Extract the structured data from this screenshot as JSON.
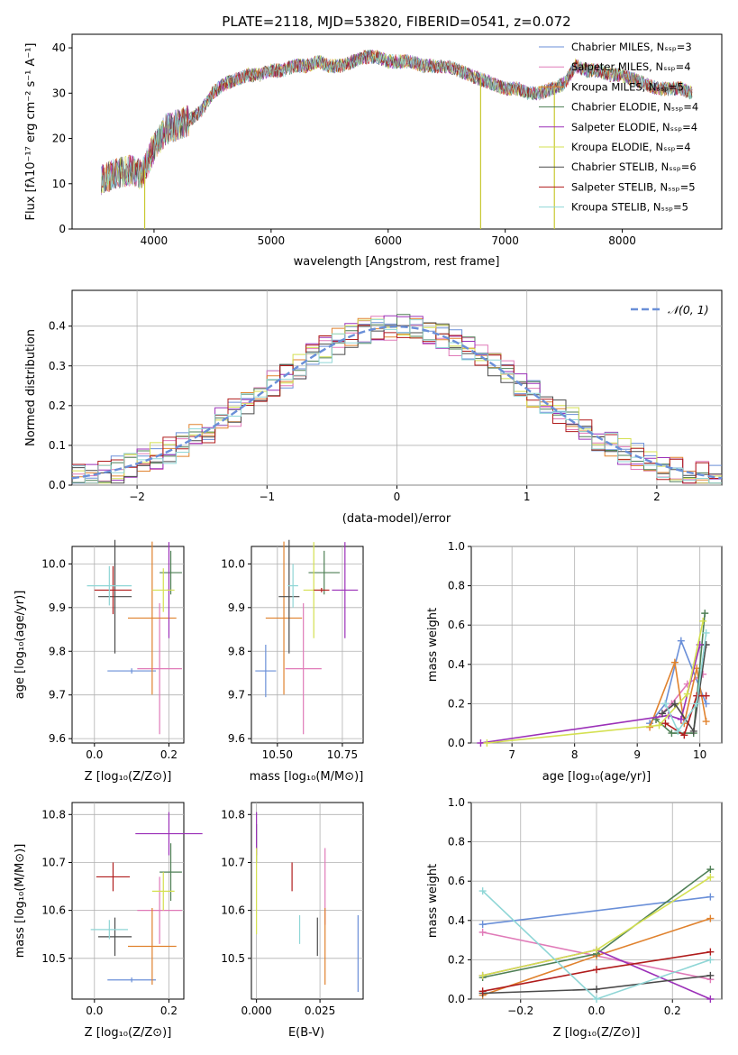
{
  "figure": {
    "title": "PLATE=2118, MJD=53820, FIBERID=0541, z=0.072"
  },
  "colors": {
    "chabrier_miles": "#6a8fd8",
    "salpeter_miles": "#e07ab8",
    "kroupa_miles": "#e0822e",
    "chabrier_elodie": "#4e7f55",
    "salpeter_elodie": "#9b30b8",
    "kroupa_elodie": "#d4e050",
    "chabrier_stelib": "#4a4a4a",
    "salpeter_stelib": "#b01c1c",
    "kroupa_stelib": "#8fd6d6",
    "normal_curve": "#6a8fd8",
    "grid": "#b0b0b0"
  },
  "chart_data": [
    {
      "id": "spectrum",
      "type": "line",
      "title": "PLATE=2118, MJD=53820, FIBERID=0541, z=0.072",
      "xlabel": "wavelength [Angstrom, rest frame]",
      "ylabel": "Flux [fλ10⁻¹⁷ erg cm⁻² s⁻¹ A⁻¹]",
      "xlim": [
        3300,
        8850
      ],
      "ylim": [
        0,
        43
      ],
      "xticks": [
        "4000",
        "5000",
        "6000",
        "7000",
        "8000"
      ],
      "yticks": [
        "0",
        "10",
        "20",
        "30",
        "40"
      ],
      "grid": false,
      "legend_position": "top-right",
      "legend": [
        "Chabrier MILES, Nₛₛₚ=3",
        "Salpeter MILES, Nₛₛₚ=4",
        "Kroupa MILES, Nₛₛₚ=5",
        "Chabrier ELODIE, Nₛₛₚ=4",
        "Salpeter ELODIE, Nₛₛₚ=4",
        "Kroupa ELODIE, Nₛₛₚ=4",
        "Chabrier STELIB, Nₛₛₚ=6",
        "Salpeter STELIB, Nₛₛₚ=5",
        "Kroupa STELIB, Nₛₛₚ=5"
      ],
      "continuum": {
        "wavelength": [
          3550,
          3650,
          3800,
          3900,
          4000,
          4100,
          4200,
          4300,
          4400,
          4500,
          4600,
          4700,
          4800,
          4900,
          5000,
          5100,
          5200,
          5300,
          5400,
          5500,
          5600,
          5700,
          5800,
          5900,
          6000,
          6100,
          6200,
          6300,
          6400,
          6500,
          6600,
          6700,
          6800,
          6900,
          7000,
          7100,
          7200,
          7300,
          7400,
          7500,
          7600,
          7700,
          7800,
          7900,
          8000,
          8100,
          8200,
          8300,
          8400,
          8500,
          8600
        ],
        "flux": [
          11,
          12,
          13,
          12,
          18,
          22,
          23,
          24,
          26,
          30,
          32,
          33,
          34,
          34,
          35,
          35,
          36,
          36,
          37,
          36,
          36,
          37,
          38,
          38,
          37,
          37,
          37,
          36,
          36,
          36,
          35,
          34,
          33,
          32,
          31,
          31,
          30,
          30,
          31,
          32,
          36,
          35,
          35,
          34,
          34,
          33,
          32,
          31,
          31,
          31,
          30
        ]
      },
      "spikes": [
        {
          "x": 3920,
          "y_from": 0,
          "y_to": 13
        },
        {
          "x": 6790,
          "y_from": 0,
          "y_to": 33
        },
        {
          "x": 7420,
          "y_from": 0,
          "y_to": 31
        }
      ]
    },
    {
      "id": "residual_histogram",
      "type": "line",
      "xlabel": "(data-model)/error",
      "ylabel": "Normed distribution",
      "xlim": [
        -2.5,
        2.5
      ],
      "ylim": [
        0,
        0.49
      ],
      "xticks": [
        "−2",
        "−1",
        "0",
        "1",
        "2"
      ],
      "yticks": [
        "0.0",
        "0.1",
        "0.2",
        "0.3",
        "0.4"
      ],
      "grid": true,
      "legend_position": "top-right",
      "legend": [
        "𝒩(0, 1)"
      ],
      "bin_width": 0.1,
      "n_bins": 50
    },
    {
      "id": "age_vs_Z",
      "type": "scatter",
      "xlabel": "Z [log₁₀(Z/Z⊙)]",
      "ylabel": "age  [log₁₀(age/yr)]",
      "xlim": [
        -0.06,
        0.24
      ],
      "ylim": [
        9.59,
        10.04
      ],
      "xticks": [
        "0.0",
        "0.2"
      ],
      "yticks": [
        "9.6",
        "9.7",
        "9.8",
        "9.9",
        "10.0"
      ],
      "grid": true,
      "points": [
        {
          "model": "chabrier_miles",
          "x": 0.1,
          "y": 9.755,
          "xerr": 0.065,
          "yerr": 0.006
        },
        {
          "model": "salpeter_miles",
          "x": 0.175,
          "y": 9.76,
          "xerr": 0.06,
          "yerr": 0.15
        },
        {
          "model": "kroupa_miles",
          "x": 0.155,
          "y": 9.876,
          "xerr": 0.065,
          "yerr": 0.175
        },
        {
          "model": "chabrier_elodie",
          "x": 0.205,
          "y": 9.98,
          "xerr": 0.03,
          "yerr": 0.05
        },
        {
          "model": "salpeter_elodie",
          "x": 0.2,
          "y": 9.94,
          "xerr": 0.005,
          "yerr": 0.11
        },
        {
          "model": "kroupa_elodie",
          "x": 0.185,
          "y": 9.94,
          "xerr": 0.03,
          "yerr": 0.05
        },
        {
          "model": "chabrier_stelib",
          "x": 0.055,
          "y": 9.925,
          "xerr": 0.045,
          "yerr": 0.13
        },
        {
          "model": "salpeter_stelib",
          "x": 0.05,
          "y": 9.94,
          "xerr": 0.05,
          "yerr": 0.055
        },
        {
          "model": "kroupa_stelib",
          "x": 0.04,
          "y": 9.95,
          "xerr": 0.06,
          "yerr": 0.045
        }
      ]
    },
    {
      "id": "age_vs_mass",
      "type": "scatter",
      "xlabel": "mass [log₁₀(M/M⊙)]",
      "ylabel": "",
      "xlim": [
        10.4,
        10.83
      ],
      "ylim": [
        9.59,
        10.04
      ],
      "xticks": [
        "10.50",
        "10.75"
      ],
      "yticks": [
        "9.6",
        "9.7",
        "9.8",
        "9.9",
        "10.0"
      ],
      "grid": true,
      "points": [
        {
          "model": "chabrier_miles",
          "x": 10.455,
          "y": 9.755,
          "xerr": 0.04,
          "yerr": 0.06
        },
        {
          "model": "salpeter_miles",
          "x": 10.6,
          "y": 9.76,
          "xerr": 0.07,
          "yerr": 0.15
        },
        {
          "model": "kroupa_miles",
          "x": 10.525,
          "y": 9.876,
          "xerr": 0.07,
          "yerr": 0.175
        },
        {
          "model": "chabrier_elodie",
          "x": 10.68,
          "y": 9.98,
          "xerr": 0.06,
          "yerr": 0.05
        },
        {
          "model": "salpeter_elodie",
          "x": 10.76,
          "y": 9.94,
          "xerr": 0.05,
          "yerr": 0.11
        },
        {
          "model": "kroupa_elodie",
          "x": 10.64,
          "y": 9.94,
          "xerr": 0.04,
          "yerr": 0.11
        },
        {
          "model": "chabrier_stelib",
          "x": 10.545,
          "y": 9.925,
          "xerr": 0.04,
          "yerr": 0.13
        },
        {
          "model": "salpeter_stelib",
          "x": 10.67,
          "y": 9.94,
          "xerr": 0.03,
          "yerr": 0.005
        },
        {
          "model": "kroupa_stelib",
          "x": 10.56,
          "y": 9.95,
          "xerr": 0.02,
          "yerr": 0.05
        }
      ]
    },
    {
      "id": "mass_weight_vs_age",
      "type": "line",
      "xlabel": "age  [log₁₀(age/yr)]",
      "ylabel": "mass weight",
      "xlim": [
        6.35,
        10.35
      ],
      "ylim": [
        0,
        1.0
      ],
      "xticks": [
        "7",
        "8",
        "9",
        "10"
      ],
      "yticks": [
        "0.0",
        "0.2",
        "0.4",
        "0.6",
        "0.8",
        "1.0"
      ],
      "grid": true,
      "series": [
        {
          "model": "chabrier_miles",
          "x": [
            9.2,
            9.45,
            9.7,
            10.1
          ],
          "y": [
            0.1,
            0.2,
            0.52,
            0.2
          ]
        },
        {
          "model": "salpeter_miles",
          "x": [
            9.3,
            9.55,
            9.8,
            10.05
          ],
          "y": [
            0.12,
            0.2,
            0.3,
            0.35
          ]
        },
        {
          "model": "kroupa_miles",
          "x": [
            9.2,
            9.6,
            9.75,
            9.95,
            10.1
          ],
          "y": [
            0.08,
            0.41,
            0.1,
            0.38,
            0.11
          ]
        },
        {
          "model": "chabrier_elodie",
          "x": [
            9.3,
            9.55,
            9.9,
            10.08
          ],
          "y": [
            0.12,
            0.05,
            0.05,
            0.66
          ]
        },
        {
          "model": "salpeter_elodie",
          "x": [
            6.5,
            9.5,
            9.7,
            10.0
          ],
          "y": [
            0.0,
            0.14,
            0.12,
            0.5
          ]
        },
        {
          "model": "kroupa_elodie",
          "x": [
            6.6,
            9.35,
            9.8,
            10.05
          ],
          "y": [
            0.0,
            0.09,
            0.25,
            0.62
          ]
        },
        {
          "model": "chabrier_stelib",
          "x": [
            9.4,
            9.6,
            9.9,
            10.1
          ],
          "y": [
            0.15,
            0.2,
            0.06,
            0.5
          ]
        },
        {
          "model": "salpeter_stelib",
          "x": [
            9.45,
            9.75,
            9.95,
            10.1
          ],
          "y": [
            0.1,
            0.04,
            0.24,
            0.24
          ]
        },
        {
          "model": "kroupa_stelib",
          "x": [
            9.45,
            9.65,
            9.95,
            10.1
          ],
          "y": [
            0.2,
            0.06,
            0.2,
            0.56
          ]
        }
      ]
    },
    {
      "id": "mass_vs_Z",
      "type": "scatter",
      "xlabel": "Z [log₁₀(Z/Z⊙)]",
      "ylabel": "mass [log₁₀(M/M⊙)]",
      "xlim": [
        -0.06,
        0.24
      ],
      "ylim": [
        10.415,
        10.825
      ],
      "xticks": [
        "0.0",
        "0.2"
      ],
      "yticks": [
        "10.5",
        "10.6",
        "10.7",
        "10.8"
      ],
      "grid": true,
      "points": [
        {
          "model": "chabrier_miles",
          "x": 0.1,
          "y": 10.455,
          "xerr": 0.065,
          "yerr": 0.005
        },
        {
          "model": "salpeter_miles",
          "x": 0.175,
          "y": 10.6,
          "xerr": 0.06,
          "yerr": 0.07
        },
        {
          "model": "kroupa_miles",
          "x": 0.155,
          "y": 10.525,
          "xerr": 0.065,
          "yerr": 0.08
        },
        {
          "model": "chabrier_elodie",
          "x": 0.205,
          "y": 10.68,
          "xerr": 0.03,
          "yerr": 0.06
        },
        {
          "model": "salpeter_elodie",
          "x": 0.2,
          "y": 10.76,
          "xerr": 0.09,
          "yerr": 0.045
        },
        {
          "model": "kroupa_elodie",
          "x": 0.185,
          "y": 10.64,
          "xerr": 0.03,
          "yerr": 0.04
        },
        {
          "model": "chabrier_stelib",
          "x": 0.055,
          "y": 10.545,
          "xerr": 0.045,
          "yerr": 0.04
        },
        {
          "model": "salpeter_stelib",
          "x": 0.05,
          "y": 10.67,
          "xerr": 0.045,
          "yerr": 0.03
        },
        {
          "model": "kroupa_stelib",
          "x": 0.04,
          "y": 10.56,
          "xerr": 0.05,
          "yerr": 0.02
        }
      ]
    },
    {
      "id": "mass_vs_EBV",
      "type": "scatter",
      "xlabel": "E(B-V)",
      "ylabel": "",
      "xlim": [
        -0.002,
        0.042
      ],
      "ylim": [
        10.415,
        10.825
      ],
      "xticks": [
        "0.000",
        "0.025"
      ],
      "yticks": [
        "10.5",
        "10.6",
        "10.7",
        "10.8"
      ],
      "grid": true,
      "points": [
        {
          "model": "chabrier_miles",
          "x": 0.04,
          "y": 10.51,
          "xerr": 0.0,
          "yerr": 0.08
        },
        {
          "model": "salpeter_miles",
          "x": 0.027,
          "y": 10.65,
          "xerr": 0.0,
          "yerr": 0.08
        },
        {
          "model": "kroupa_miles",
          "x": 0.027,
          "y": 10.525,
          "xerr": 0.0,
          "yerr": 0.08
        },
        {
          "model": "chabrier_elodie",
          "x": 0.0,
          "y": 10.74,
          "xerr": 0.0,
          "yerr": 0.04
        },
        {
          "model": "salpeter_elodie",
          "x": 0.0,
          "y": 10.76,
          "xerr": 0.0,
          "yerr": 0.045
        },
        {
          "model": "kroupa_elodie",
          "x": 0.0,
          "y": 10.64,
          "xerr": 0.0,
          "yerr": 0.09
        },
        {
          "model": "chabrier_stelib",
          "x": 0.024,
          "y": 10.545,
          "xerr": 0.0,
          "yerr": 0.04
        },
        {
          "model": "salpeter_stelib",
          "x": 0.014,
          "y": 10.67,
          "xerr": 0.0,
          "yerr": 0.03
        },
        {
          "model": "kroupa_stelib",
          "x": 0.017,
          "y": 10.56,
          "xerr": 0.0,
          "yerr": 0.03
        }
      ]
    },
    {
      "id": "mass_weight_vs_Z",
      "type": "line",
      "xlabel": "Z [log₁₀(Z/Z⊙)]",
      "ylabel": "mass weight",
      "xlim": [
        -0.33,
        0.33
      ],
      "ylim": [
        0,
        1.0
      ],
      "xticks": [
        "−0.2",
        "0.0",
        "0.2"
      ],
      "yticks": [
        "0.0",
        "0.2",
        "0.4",
        "0.6",
        "0.8",
        "1.0"
      ],
      "grid": true,
      "series": [
        {
          "model": "chabrier_miles",
          "x": [
            -0.3,
            0.3
          ],
          "y": [
            0.38,
            0.52
          ]
        },
        {
          "model": "salpeter_miles",
          "x": [
            -0.3,
            0.3
          ],
          "y": [
            0.34,
            0.1
          ]
        },
        {
          "model": "kroupa_miles",
          "x": [
            -0.3,
            0.0,
            0.3
          ],
          "y": [
            0.02,
            0.22,
            0.41
          ]
        },
        {
          "model": "chabrier_elodie",
          "x": [
            -0.3,
            0.0,
            0.3
          ],
          "y": [
            0.11,
            0.23,
            0.66
          ]
        },
        {
          "model": "salpeter_elodie",
          "x": [
            -0.3,
            0.0,
            0.3
          ],
          "y": [
            0.12,
            0.25,
            0.0
          ]
        },
        {
          "model": "kroupa_elodie",
          "x": [
            -0.3,
            0.0,
            0.3
          ],
          "y": [
            0.12,
            0.25,
            0.62
          ]
        },
        {
          "model": "chabrier_stelib",
          "x": [
            -0.3,
            0.0,
            0.3
          ],
          "y": [
            0.03,
            0.05,
            0.12
          ]
        },
        {
          "model": "salpeter_stelib",
          "x": [
            -0.3,
            0.0,
            0.3
          ],
          "y": [
            0.04,
            0.15,
            0.24
          ]
        },
        {
          "model": "kroupa_stelib",
          "x": [
            -0.3,
            0.0,
            0.3
          ],
          "y": [
            0.55,
            0.0,
            0.2
          ]
        }
      ]
    }
  ]
}
